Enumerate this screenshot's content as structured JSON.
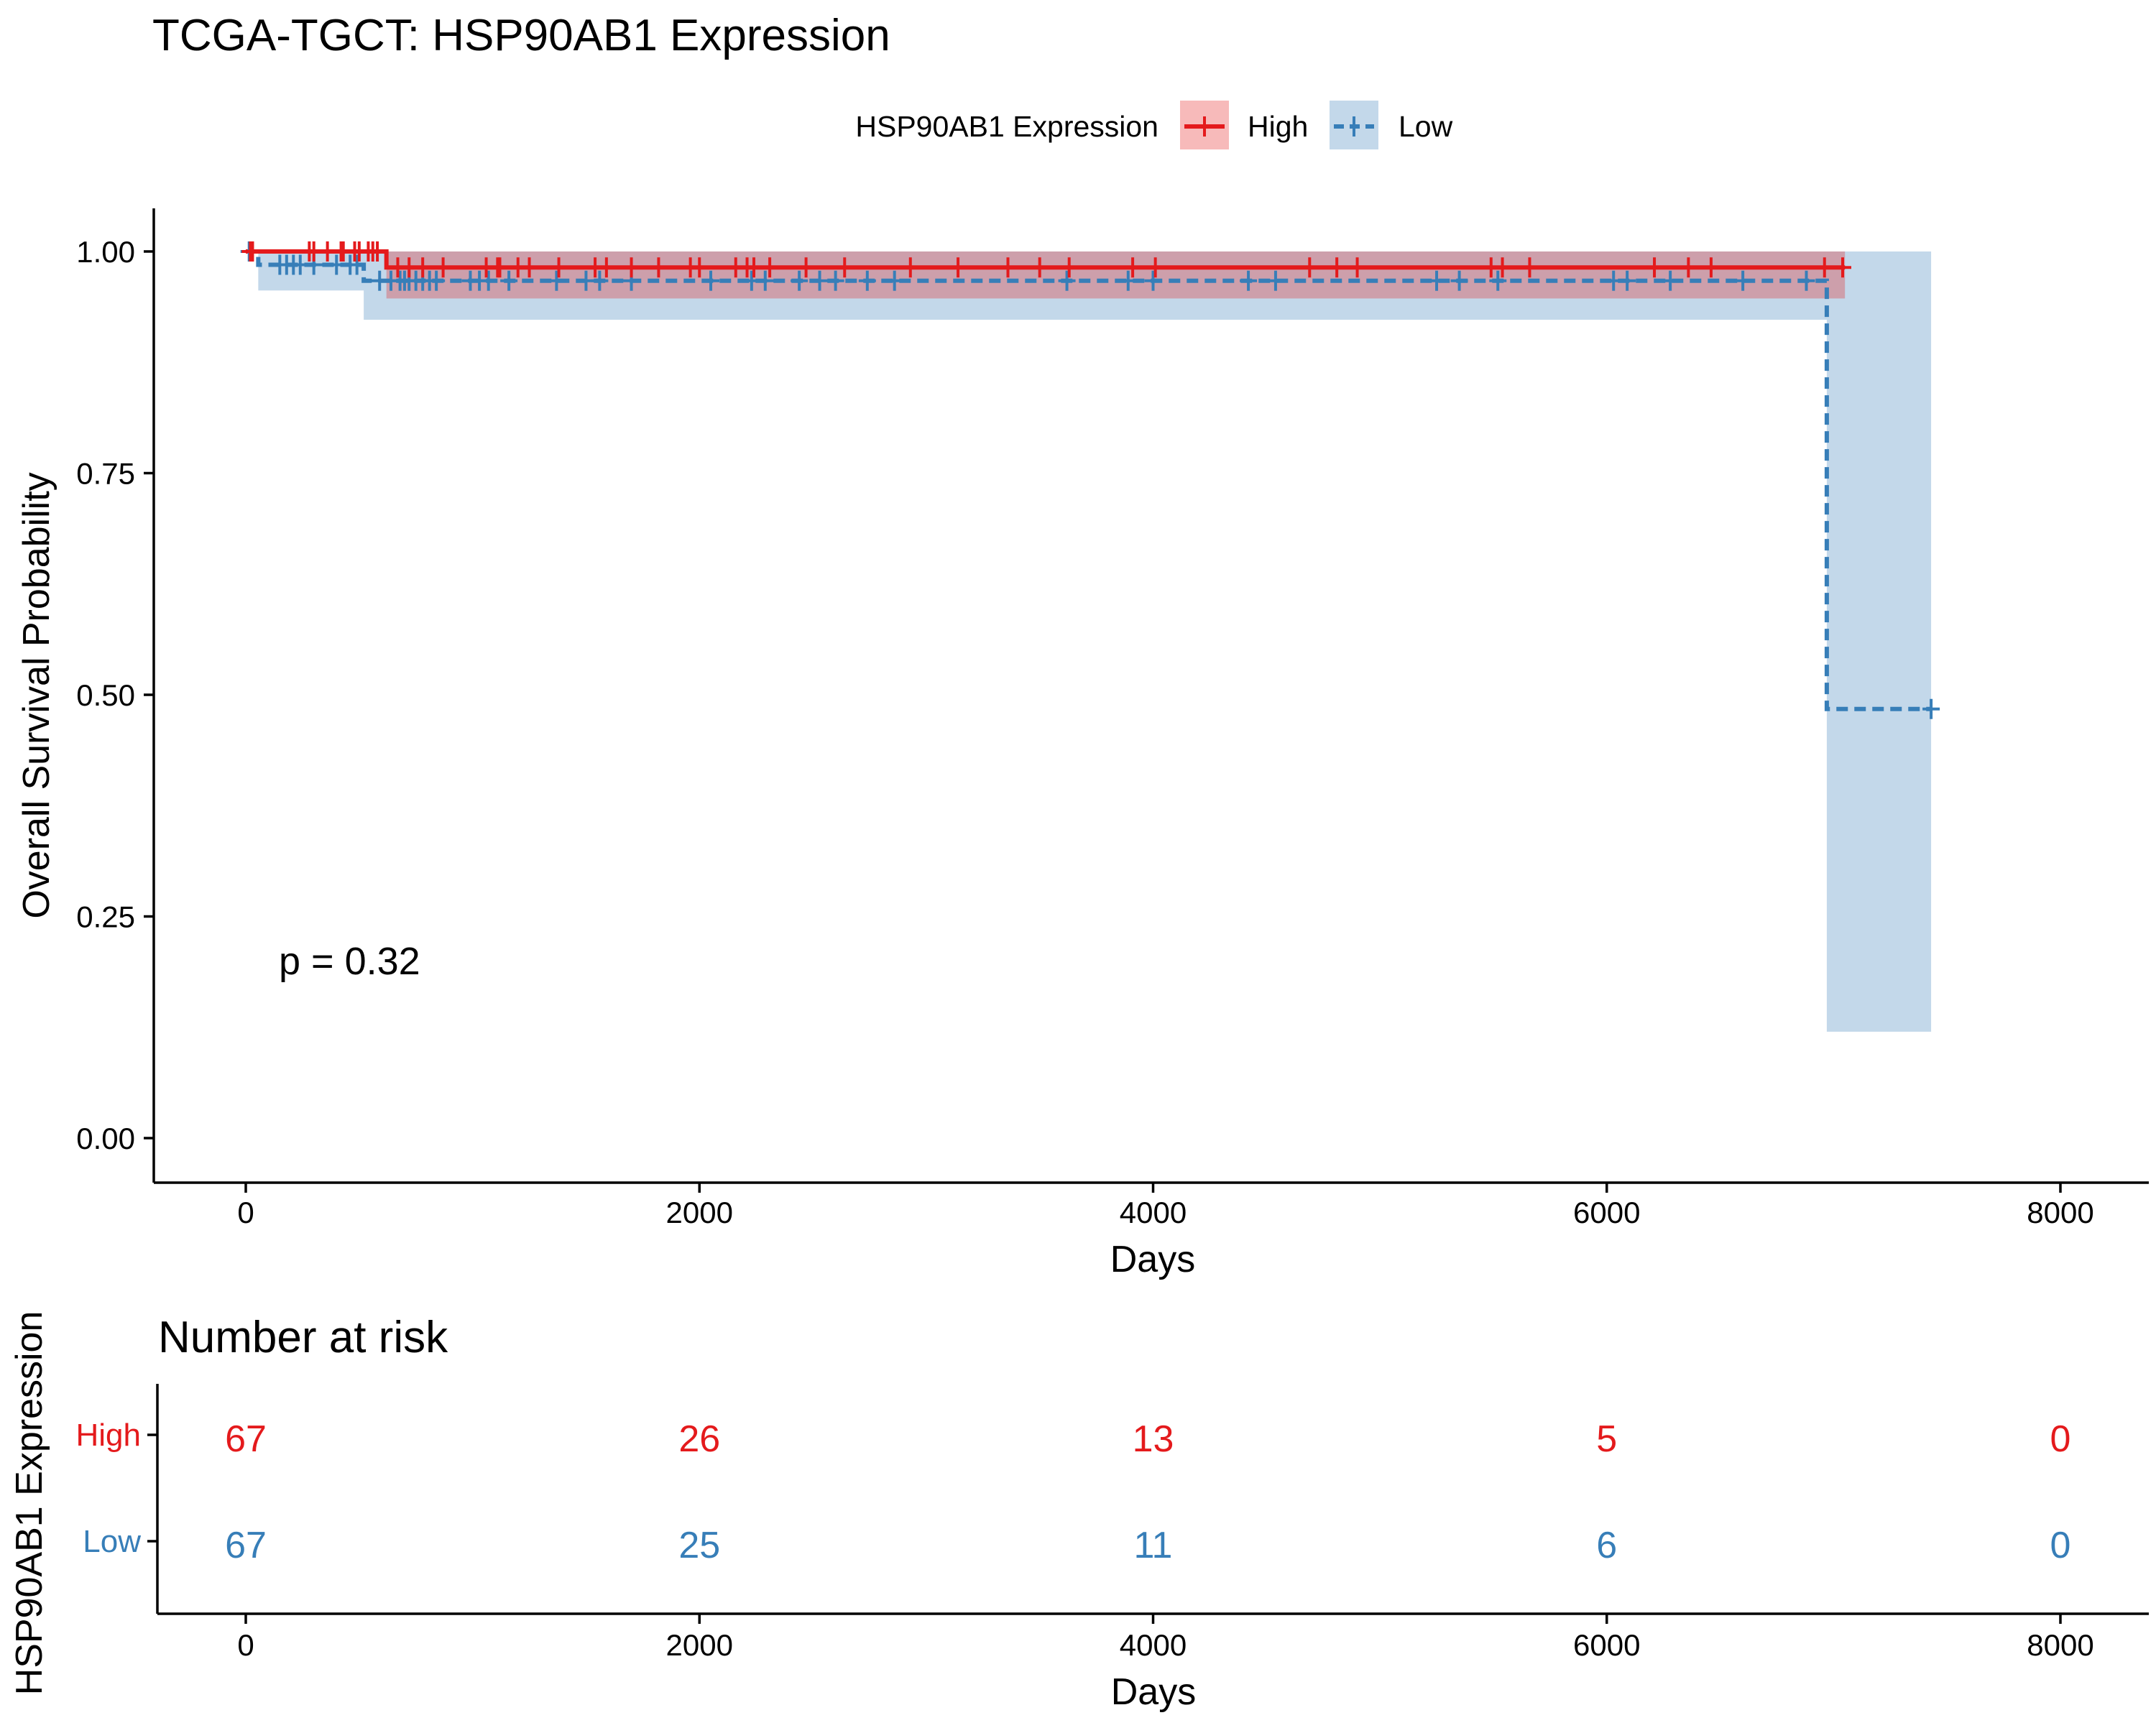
{
  "chart_data": {
    "type": "line",
    "subtype": "kaplan-meier",
    "title": "TCGA-TGCT: HSP90AB1 Expression",
    "xlabel": "Days",
    "ylabel": "Overall Survival Probability",
    "xlim": [
      -400,
      8400
    ],
    "ylim": [
      -0.05,
      1.05
    ],
    "xticks": [
      0,
      2000,
      4000,
      6000,
      8000
    ],
    "yticks": [
      0.0,
      0.25,
      0.5,
      0.75,
      1.0
    ],
    "ytick_labels": [
      "0.00",
      "0.25",
      "0.50",
      "0.75",
      "1.00"
    ],
    "grid": false,
    "legend": {
      "title": "HSP90AB1 Expression",
      "position": "top",
      "entries": [
        "High",
        "Low"
      ]
    },
    "annotation": "p = 0.32",
    "series": [
      {
        "name": "High",
        "color": "#E41A1C",
        "line_style": "solid",
        "steps": [
          [
            0,
            1.0
          ],
          [
            620,
            0.982
          ],
          [
            7050,
            0.982
          ]
        ],
        "ci": [
          {
            "x0": 0,
            "x1": 620,
            "lower": 1.0,
            "upper": 1.0
          },
          {
            "x0": 620,
            "x1": 7050,
            "lower": 0.947,
            "upper": 1.0
          }
        ],
        "censors": [
          {
            "x": 20,
            "y": 1.0
          },
          {
            "x": 30,
            "y": 1.0
          },
          {
            "x": 280,
            "y": 1.0
          },
          {
            "x": 300,
            "y": 1.0
          },
          {
            "x": 360,
            "y": 1.0
          },
          {
            "x": 420,
            "y": 1.0
          },
          {
            "x": 430,
            "y": 1.0
          },
          {
            "x": 480,
            "y": 1.0
          },
          {
            "x": 500,
            "y": 1.0
          },
          {
            "x": 540,
            "y": 1.0
          },
          {
            "x": 560,
            "y": 1.0
          },
          {
            "x": 580,
            "y": 1.0
          },
          {
            "x": 670,
            "y": 0.982
          },
          {
            "x": 720,
            "y": 0.982
          },
          {
            "x": 780,
            "y": 0.982
          },
          {
            "x": 870,
            "y": 0.982
          },
          {
            "x": 1060,
            "y": 0.982
          },
          {
            "x": 1110,
            "y": 0.982
          },
          {
            "x": 1120,
            "y": 0.982
          },
          {
            "x": 1200,
            "y": 0.982
          },
          {
            "x": 1250,
            "y": 0.982
          },
          {
            "x": 1380,
            "y": 0.982
          },
          {
            "x": 1540,
            "y": 0.982
          },
          {
            "x": 1590,
            "y": 0.982
          },
          {
            "x": 1700,
            "y": 0.982
          },
          {
            "x": 1820,
            "y": 0.982
          },
          {
            "x": 1960,
            "y": 0.982
          },
          {
            "x": 2000,
            "y": 0.982
          },
          {
            "x": 2160,
            "y": 0.982
          },
          {
            "x": 2210,
            "y": 0.982
          },
          {
            "x": 2240,
            "y": 0.982
          },
          {
            "x": 2310,
            "y": 0.982
          },
          {
            "x": 2470,
            "y": 0.982
          },
          {
            "x": 2640,
            "y": 0.982
          },
          {
            "x": 2930,
            "y": 0.982
          },
          {
            "x": 3140,
            "y": 0.982
          },
          {
            "x": 3360,
            "y": 0.982
          },
          {
            "x": 3500,
            "y": 0.982
          },
          {
            "x": 3630,
            "y": 0.982
          },
          {
            "x": 3910,
            "y": 0.982
          },
          {
            "x": 4010,
            "y": 0.982
          },
          {
            "x": 4690,
            "y": 0.982
          },
          {
            "x": 4810,
            "y": 0.982
          },
          {
            "x": 4900,
            "y": 0.982
          },
          {
            "x": 5490,
            "y": 0.982
          },
          {
            "x": 5540,
            "y": 0.982
          },
          {
            "x": 5660,
            "y": 0.982
          },
          {
            "x": 6210,
            "y": 0.982
          },
          {
            "x": 6360,
            "y": 0.982
          },
          {
            "x": 6460,
            "y": 0.982
          },
          {
            "x": 6960,
            "y": 0.982
          },
          {
            "x": 7040,
            "y": 0.982
          }
        ]
      },
      {
        "name": "Low",
        "color": "#377EB8",
        "line_style": "dashed",
        "steps": [
          [
            0,
            1.0
          ],
          [
            55,
            0.985
          ],
          [
            520,
            0.967
          ],
          [
            6970,
            0.484
          ],
          [
            7430,
            0.484
          ]
        ],
        "ci": [
          {
            "x0": 0,
            "x1": 55,
            "lower": 1.0,
            "upper": 1.0
          },
          {
            "x0": 55,
            "x1": 520,
            "lower": 0.956,
            "upper": 1.0
          },
          {
            "x0": 520,
            "x1": 6970,
            "lower": 0.923,
            "upper": 1.0
          },
          {
            "x0": 6970,
            "x1": 7430,
            "lower": 0.12,
            "upper": 1.0
          }
        ],
        "censors": [
          {
            "x": 15,
            "y": 1.0
          },
          {
            "x": 150,
            "y": 0.985
          },
          {
            "x": 180,
            "y": 0.985
          },
          {
            "x": 210,
            "y": 0.985
          },
          {
            "x": 240,
            "y": 0.985
          },
          {
            "x": 300,
            "y": 0.985
          },
          {
            "x": 400,
            "y": 0.985
          },
          {
            "x": 460,
            "y": 0.985
          },
          {
            "x": 490,
            "y": 0.985
          },
          {
            "x": 590,
            "y": 0.967
          },
          {
            "x": 640,
            "y": 0.967
          },
          {
            "x": 680,
            "y": 0.967
          },
          {
            "x": 700,
            "y": 0.967
          },
          {
            "x": 720,
            "y": 0.967
          },
          {
            "x": 750,
            "y": 0.967
          },
          {
            "x": 780,
            "y": 0.967
          },
          {
            "x": 810,
            "y": 0.967
          },
          {
            "x": 840,
            "y": 0.967
          },
          {
            "x": 990,
            "y": 0.967
          },
          {
            "x": 1030,
            "y": 0.967
          },
          {
            "x": 1070,
            "y": 0.967
          },
          {
            "x": 1160,
            "y": 0.967
          },
          {
            "x": 1370,
            "y": 0.967
          },
          {
            "x": 1500,
            "y": 0.967
          },
          {
            "x": 1560,
            "y": 0.967
          },
          {
            "x": 1700,
            "y": 0.967
          },
          {
            "x": 2050,
            "y": 0.967
          },
          {
            "x": 2230,
            "y": 0.967
          },
          {
            "x": 2290,
            "y": 0.967
          },
          {
            "x": 2440,
            "y": 0.967
          },
          {
            "x": 2530,
            "y": 0.967
          },
          {
            "x": 2600,
            "y": 0.967
          },
          {
            "x": 2740,
            "y": 0.967
          },
          {
            "x": 2860,
            "y": 0.967
          },
          {
            "x": 3620,
            "y": 0.967
          },
          {
            "x": 3890,
            "y": 0.967
          },
          {
            "x": 4000,
            "y": 0.967
          },
          {
            "x": 4420,
            "y": 0.967
          },
          {
            "x": 4540,
            "y": 0.967
          },
          {
            "x": 5250,
            "y": 0.967
          },
          {
            "x": 5350,
            "y": 0.967
          },
          {
            "x": 5520,
            "y": 0.967
          },
          {
            "x": 6030,
            "y": 0.967
          },
          {
            "x": 6090,
            "y": 0.967
          },
          {
            "x": 6280,
            "y": 0.967
          },
          {
            "x": 6600,
            "y": 0.967
          },
          {
            "x": 6880,
            "y": 0.967
          },
          {
            "x": 7430,
            "y": 0.484
          }
        ]
      }
    ],
    "risk_table": {
      "title": "Number at risk",
      "ylabel": "HSP90AB1 Expression",
      "xlabel": "Days",
      "times": [
        0,
        2000,
        4000,
        6000,
        8000
      ],
      "rows": [
        {
          "name": "High",
          "color": "#E41A1C",
          "counts": [
            67,
            26,
            13,
            5,
            0
          ]
        },
        {
          "name": "Low",
          "color": "#377EB8",
          "counts": [
            67,
            25,
            11,
            6,
            0
          ]
        }
      ]
    }
  }
}
